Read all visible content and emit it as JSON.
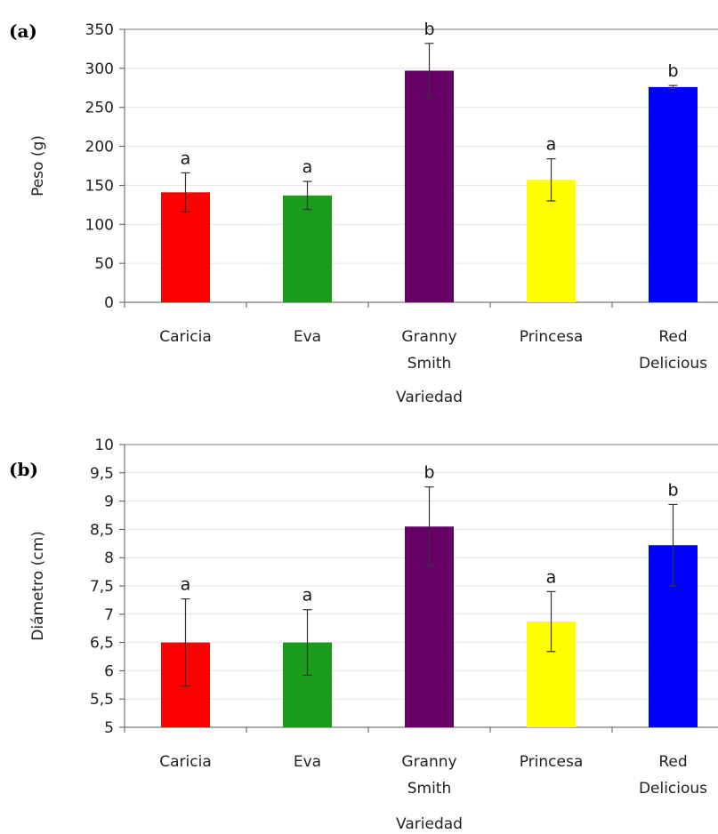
{
  "chart_data": [
    {
      "type": "bar",
      "panel_label": "(a)",
      "xlabel": "Variedad",
      "ylabel": "Peso (g)",
      "ylim": [
        0,
        350
      ],
      "yticks": [
        "0",
        "50",
        "100",
        "150",
        "200",
        "250",
        "300",
        "350"
      ],
      "categories": [
        [
          "Caricia"
        ],
        [
          "Eva"
        ],
        [
          "Granny",
          "Smith"
        ],
        [
          "Princesa"
        ],
        [
          "Red",
          "Delicious"
        ]
      ],
      "values": [
        141,
        137,
        297,
        157,
        276
      ],
      "errors": [
        25,
        18,
        35,
        27,
        2
      ],
      "group_letters": [
        "a",
        "a",
        "b",
        "a",
        "b"
      ],
      "colors": [
        "#ff0000",
        "#1a9b1a",
        "#660066",
        "#ffff00",
        "#0000ff"
      ],
      "grid": true
    },
    {
      "type": "bar",
      "panel_label": "(b)",
      "xlabel": "Variedad",
      "ylabel": "Diámetro (cm)",
      "ylim": [
        5,
        10
      ],
      "yticks": [
        "5",
        "5,5",
        "6",
        "6,5",
        "7",
        "7,5",
        "8",
        "8,5",
        "9",
        "9,5",
        "10"
      ],
      "categories": [
        [
          "Caricia"
        ],
        [
          "Eva"
        ],
        [
          "Granny",
          "Smith"
        ],
        [
          "Princesa"
        ],
        [
          "Red",
          "Delicious"
        ]
      ],
      "values": [
        6.5,
        6.5,
        8.55,
        6.87,
        8.22
      ],
      "errors": [
        0.77,
        0.58,
        0.7,
        0.53,
        0.72
      ],
      "group_letters": [
        "a",
        "a",
        "b",
        "a",
        "b"
      ],
      "colors": [
        "#ff0000",
        "#1a9b1a",
        "#660066",
        "#ffff00",
        "#0000ff"
      ],
      "grid": true
    }
  ]
}
